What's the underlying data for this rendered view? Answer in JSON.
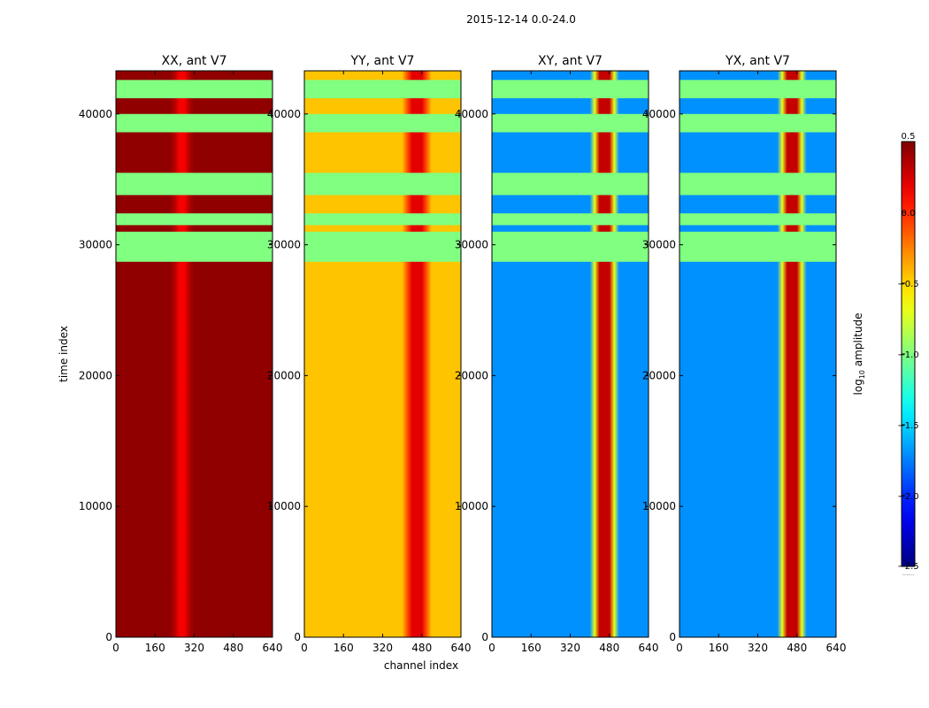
{
  "chart_data": {
    "type": "heatmap",
    "suptitle": "2015-12-14 0.0-24.0",
    "xlabel": "channel index",
    "ylabel": "time index",
    "xlim": [
      0,
      640
    ],
    "ylim": [
      0,
      43300
    ],
    "x_ticks": [
      0,
      160,
      320,
      480,
      640
    ],
    "x_tick_labels": [
      "0",
      "160",
      "320",
      "480",
      "640"
    ],
    "y_ticks": [
      0,
      10000,
      20000,
      30000,
      40000
    ],
    "y_tick_labels": [
      "0",
      "10000",
      "20000",
      "30000",
      "40000"
    ],
    "colormap": "jet",
    "colorbar": {
      "label_prefix": "log",
      "label_sub": "10",
      "label_suffix": " amplitude",
      "range": [
        -2.5,
        0.5
      ],
      "ticks": [
        0.5,
        0.0,
        -0.5,
        -1.0,
        -1.5,
        -2.0,
        -2.5
      ],
      "tick_labels": [
        "0.5",
        "0.0",
        "−0.5",
        "−1.0",
        "−1.5",
        "−2.0",
        "−2.5"
      ],
      "footer": "......"
    },
    "panels": [
      {
        "title": "XX, ant V7",
        "base_level": 0.45,
        "peak_channels": [
          270
        ],
        "peak_level": 0.05
      },
      {
        "title": "YY, ant V7",
        "base_level": -0.45,
        "peak_channels": [
          440,
          480
        ],
        "peak_level": 0.2
      },
      {
        "title": "XY, ant V7",
        "base_level": -1.7,
        "peak_channels": [
          440,
          480
        ],
        "peak_level": 0.3
      },
      {
        "title": "YX, ant V7",
        "base_level": -1.7,
        "peak_channels": [
          440,
          480
        ],
        "peak_level": 0.3
      }
    ],
    "flagged_time_ranges": [
      [
        28700,
        31000
      ],
      [
        31500,
        32400
      ],
      [
        33800,
        35500
      ],
      [
        38600,
        40000
      ],
      [
        41200,
        42600
      ]
    ],
    "flagged_level": -1.0
  }
}
